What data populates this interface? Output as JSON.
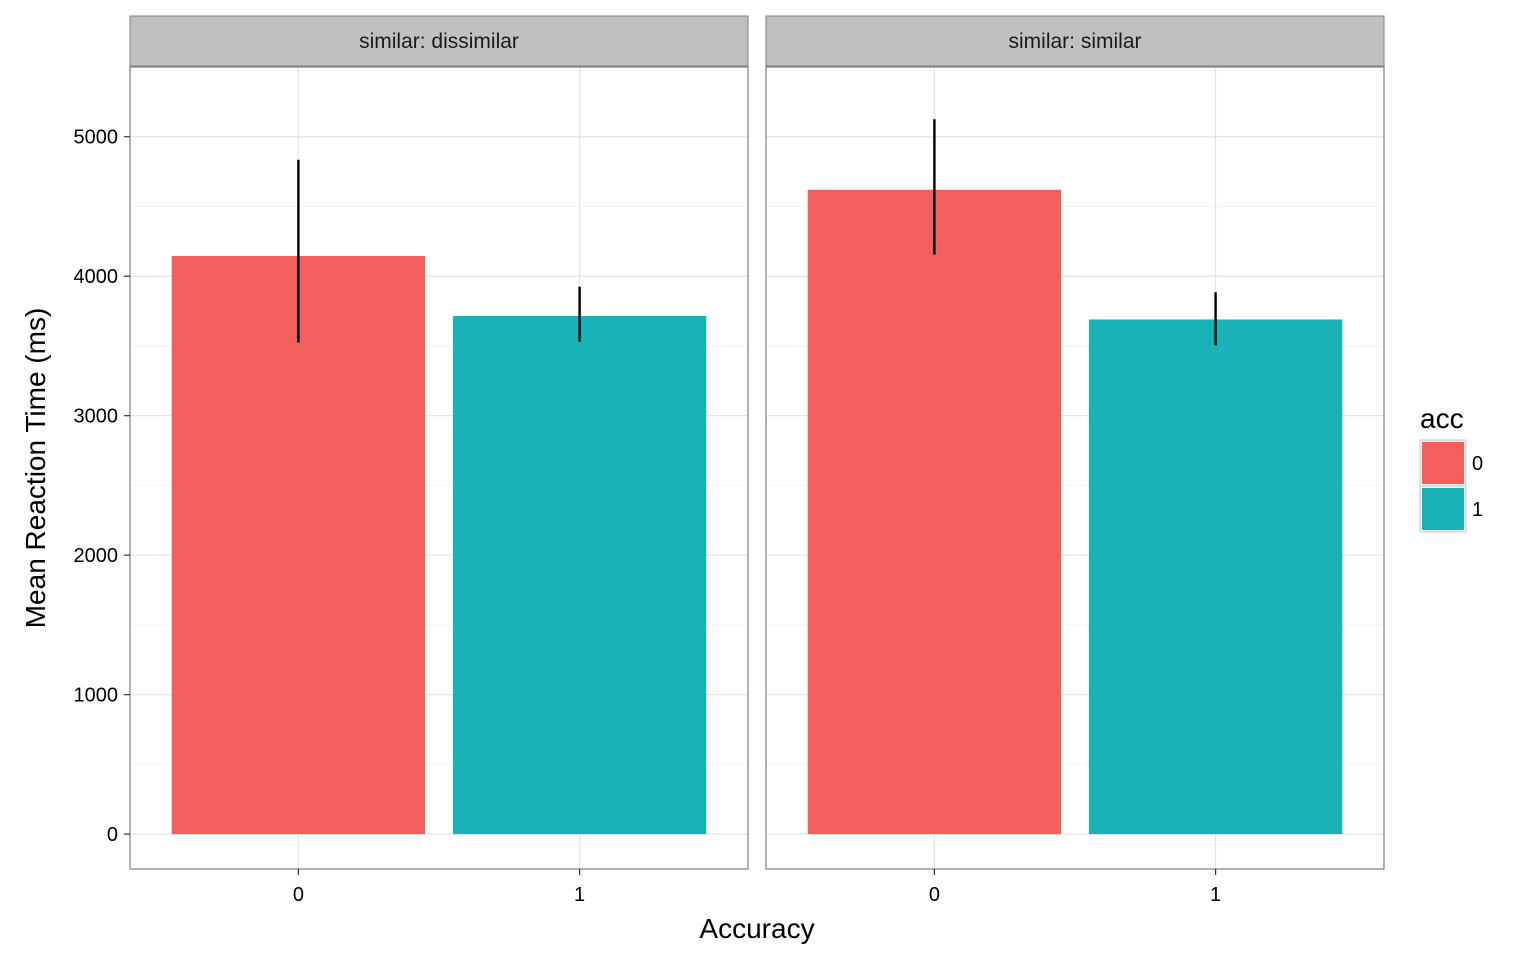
{
  "chart_data": {
    "type": "bar",
    "facet_variable": "similar",
    "facets": [
      {
        "strip_label": "similar: dissimilar",
        "categories": [
          "0",
          "1"
        ],
        "values": [
          4145,
          3715
        ],
        "error_low": [
          3525,
          3530
        ],
        "error_high": [
          4835,
          3925
        ]
      },
      {
        "strip_label": "similar: similar",
        "categories": [
          "0",
          "1"
        ],
        "values": [
          4620,
          3690
        ],
        "error_low": [
          4155,
          3505
        ],
        "error_high": [
          5125,
          3885
        ]
      }
    ],
    "xlabel": "Accuracy",
    "ylabel": "Mean Reaction Time (ms)",
    "ylim": [
      -250,
      5500
    ],
    "yticks": [
      0,
      1000,
      2000,
      3000,
      4000,
      5000
    ],
    "grid": true,
    "legend": {
      "title": "acc",
      "position": "right",
      "entries": [
        {
          "label": "0",
          "color": "#F25F5C"
        },
        {
          "label": "1",
          "color": "#19B3B7"
        }
      ]
    },
    "colors": {
      "0": "#F25F5C",
      "1": "#19B3B7"
    }
  }
}
